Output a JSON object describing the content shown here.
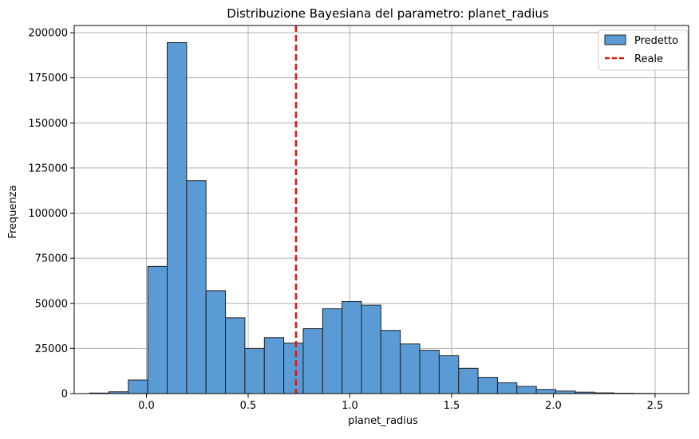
{
  "chart_data": {
    "type": "bar",
    "title": "Distribuzione Bayesiana del parametro: planet_radius",
    "xlabel": "planet_radius",
    "ylabel": "Frequenza",
    "xlim": [
      -0.355,
      2.665
    ],
    "ylim": [
      0,
      204000
    ],
    "grid": true,
    "legend_position": "top-right",
    "x_ticks": [
      0.0,
      0.5,
      1.0,
      1.5,
      2.0,
      2.5
    ],
    "x_tick_labels": [
      "0.0",
      "0.5",
      "1.0",
      "1.5",
      "2.0",
      "2.5"
    ],
    "y_ticks": [
      0,
      25000,
      50000,
      75000,
      100000,
      125000,
      150000,
      175000,
      200000
    ],
    "y_tick_labels": [
      "0",
      "25000",
      "50000",
      "75000",
      "100000",
      "125000",
      "150000",
      "175000",
      "200000"
    ],
    "bin_width": 0.0955,
    "bin_start": -0.28,
    "histogram": {
      "name": "Predetto",
      "color": "#5b9bd5",
      "values": [
        300,
        1000,
        7500,
        70500,
        194500,
        118000,
        57000,
        42000,
        25000,
        31000,
        28000,
        36000,
        47000,
        51000,
        49000,
        35000,
        27500,
        24000,
        21000,
        14000,
        9000,
        6000,
        4000,
        2300,
        1400,
        800,
        400,
        200,
        100
      ]
    },
    "reference_line": {
      "name": "Reale",
      "x": 0.735,
      "color": "#e8120c",
      "style": "dashed"
    },
    "legend": [
      {
        "label": "Predetto",
        "kind": "patch",
        "color": "#5b9bd5"
      },
      {
        "label": "Reale",
        "kind": "line",
        "color": "#e8120c"
      }
    ]
  }
}
